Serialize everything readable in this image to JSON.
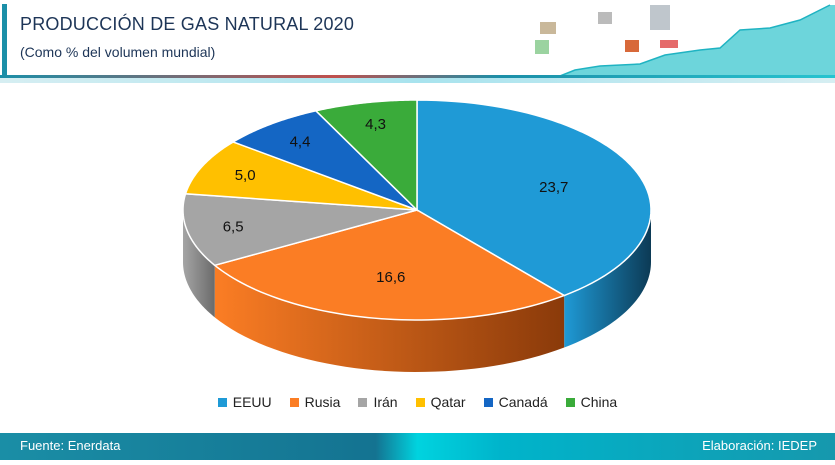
{
  "header": {
    "title": "PRODUCCIÓN DE GAS NATURAL 2020",
    "subtitle": "(Como % del volumen mundial)"
  },
  "footer": {
    "source": "Fuente:  Enerdata",
    "credit": "Elaboración: IEDEP"
  },
  "chart_data": {
    "type": "pie",
    "title": "PRODUCCIÓN DE GAS NATURAL 2020",
    "subtitle": "(Como % del volumen mundial)",
    "categories": [
      "EEUU",
      "Rusia",
      "Irán",
      "Qatar",
      "Canadá",
      "China"
    ],
    "values": [
      23.7,
      16.6,
      6.5,
      5.0,
      4.4,
      4.3
    ],
    "labels": [
      "23,7",
      "16,6",
      "6,5",
      "5,0",
      "4,4",
      "4,3"
    ],
    "colors": [
      "#1f9ad6",
      "#fb7d24",
      "#a5a5a5",
      "#ffc000",
      "#1466c4",
      "#3aab3a"
    ],
    "side_colors": [
      "#0c3a55",
      "#8a3a0a",
      "#6b6b6b",
      "#a07800",
      "#0b3b75",
      "#1f6b1f"
    ],
    "legend_position": "bottom"
  }
}
